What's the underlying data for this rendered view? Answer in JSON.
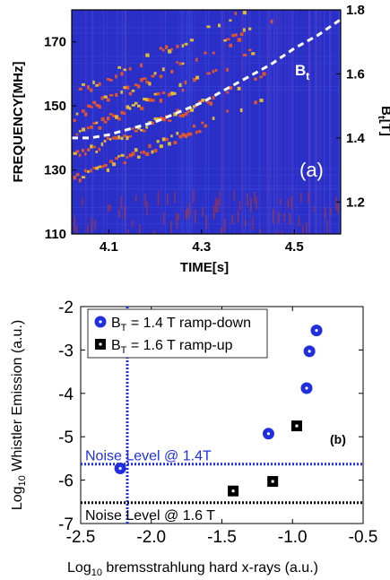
{
  "chart_data": [
    {
      "type": "heatmap",
      "panel_label": "(a)",
      "xlabel": "TIME[s]",
      "ylabel": "FREQUENCY[MHz]",
      "y2label": "B",
      "y2label_sub": "t",
      "y2label_unit": "[T]",
      "curve_label": "B",
      "curve_label_sub": "t",
      "xlim": [
        4.02,
        4.6
      ],
      "ylim": [
        110,
        180
      ],
      "y2lim": [
        1.1,
        1.8
      ],
      "xticks": [
        "4.1",
        "4.3",
        "4.5"
      ],
      "xtick_values": [
        4.1,
        4.3,
        4.5
      ],
      "yticks": [
        "110",
        "130",
        "150",
        "170"
      ],
      "ytick_values": [
        110,
        130,
        150,
        170
      ],
      "y2ticks": [
        "1.2",
        "1.4",
        "1.6",
        "1.8"
      ],
      "y2tick_values": [
        1.2,
        1.4,
        1.6,
        1.8
      ],
      "bt_curve": {
        "x": [
          4.02,
          4.06,
          4.1,
          4.15,
          4.2,
          4.25,
          4.3,
          4.35,
          4.4,
          4.45,
          4.5,
          4.55,
          4.6
        ],
        "y": [
          1.4,
          1.4,
          1.41,
          1.43,
          1.45,
          1.48,
          1.51,
          1.55,
          1.59,
          1.63,
          1.68,
          1.72,
          1.77
        ]
      },
      "colors": {
        "background": "#2a2fc8",
        "emission": "#ff6a1a",
        "curve": "#ffffff"
      }
    },
    {
      "type": "scatter",
      "panel_label": "(b)",
      "xlabel": "Log",
      "xlabel_sub": "10",
      "xlabel_rest": " bremsstrahlung  hard x-rays (a.u.)",
      "ylabel": "Log",
      "ylabel_sub": "10",
      "ylabel_rest": " Whistler Emission (a.u.)",
      "xlim": [
        -2.5,
        -0.5
      ],
      "ylim": [
        -7,
        -2
      ],
      "xticks": [
        "-2.5",
        "-2.0",
        "-1.5",
        "-1.0",
        "-0.5"
      ],
      "xtick_values": [
        -2.5,
        -2.0,
        -1.5,
        -1.0,
        -0.5
      ],
      "yticks": [
        "-2",
        "-3",
        "-4",
        "-5",
        "-6",
        "-7"
      ],
      "ytick_values": [
        -2,
        -3,
        -4,
        -5,
        -6,
        -7
      ],
      "series": [
        {
          "label_prefix": "B",
          "label_sub": "T",
          "label_rest": " = 1.4 T ramp-down",
          "marker": "circle",
          "color": "#1f2fe0",
          "x": [
            -2.22,
            -1.17,
            -0.9,
            -0.88,
            -0.83
          ],
          "y": [
            -5.73,
            -4.93,
            -3.88,
            -3.03,
            -2.55
          ]
        },
        {
          "label_prefix": "B",
          "label_sub": "T",
          "label_rest": " = 1.6 T ramp-up",
          "marker": "square",
          "color": "#000000",
          "x": [
            -1.42,
            -1.14,
            -0.97
          ],
          "y": [
            -6.25,
            -6.03,
            -4.75
          ]
        }
      ],
      "noise_levels": [
        {
          "label": "Noise Level @ 1.4T",
          "y": -5.63,
          "color": "#1f2fe0"
        },
        {
          "label": "Noise Level @ 1.6 T",
          "y": -6.52,
          "color": "#000000"
        }
      ],
      "threshold_x": -2.17
    }
  ]
}
